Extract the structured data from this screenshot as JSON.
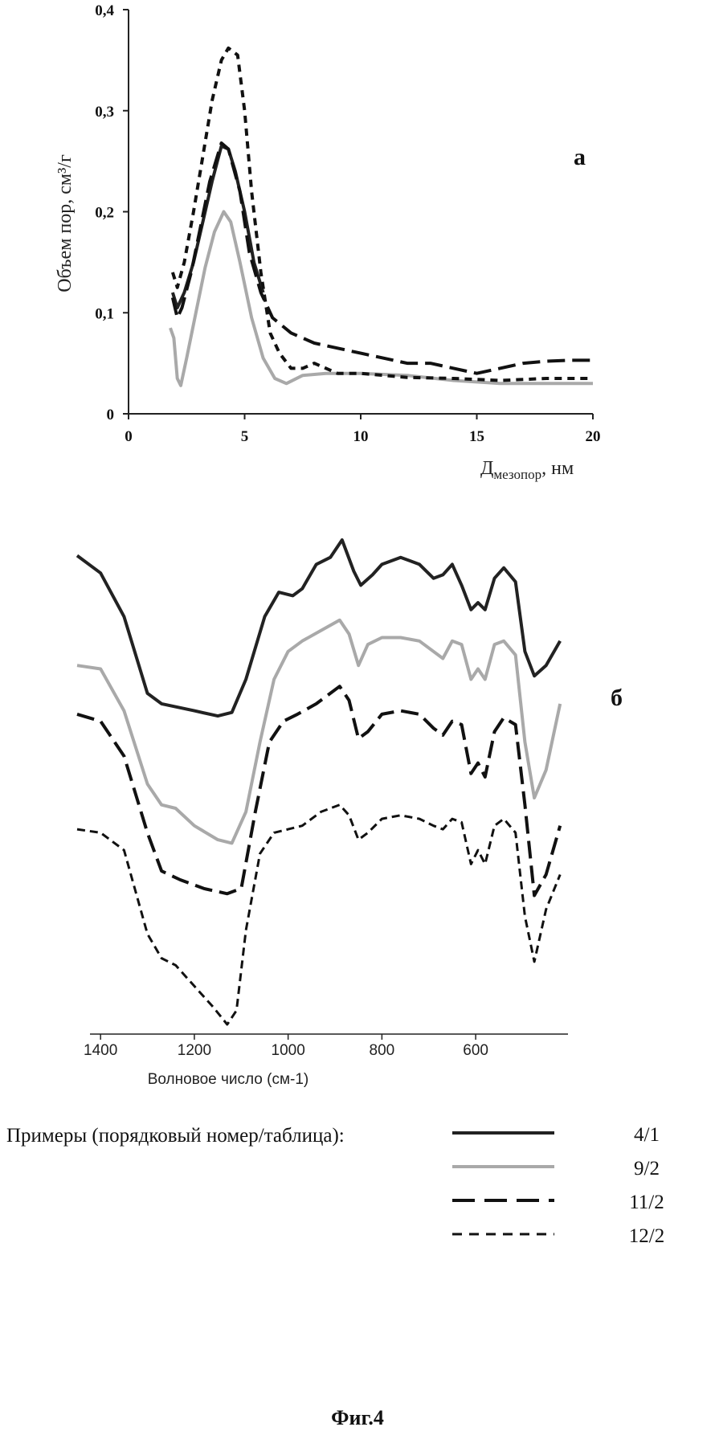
{
  "chart_data": [
    {
      "type": "line",
      "panel_label": "а",
      "ylabel": "Объем пор, см³/г",
      "xlabel_main": "Д",
      "xlabel_sub": "мезопор",
      "xlabel_tail": ", нм",
      "xlim": [
        0,
        20
      ],
      "ylim": [
        0,
        0.4
      ],
      "x_ticks": [
        "0",
        "5",
        "10",
        "15",
        "20"
      ],
      "y_ticks": [
        "0",
        "0,1",
        "0,2",
        "0,3",
        "0,4"
      ],
      "series": [
        {
          "legend": "4/1",
          "style": "solid",
          "color": "#222222",
          "points": [
            [
              1.9,
              0.12
            ],
            [
              2.1,
              0.105
            ],
            [
              2.4,
              0.12
            ],
            [
              2.8,
              0.15
            ],
            [
              3.2,
              0.19
            ],
            [
              3.6,
              0.23
            ],
            [
              4.0,
              0.265
            ],
            [
              4.3,
              0.262
            ],
            [
              4.6,
              0.24
            ],
            [
              5.0,
              0.2
            ],
            [
              5.4,
              0.15
            ],
            [
              5.8,
              0.12
            ]
          ]
        },
        {
          "legend": "9/2",
          "style": "solid",
          "color": "#a9a9a9",
          "points": [
            [
              1.8,
              0.085
            ],
            [
              1.95,
              0.075
            ],
            [
              2.1,
              0.035
            ],
            [
              2.25,
              0.028
            ],
            [
              2.5,
              0.055
            ],
            [
              2.9,
              0.1
            ],
            [
              3.3,
              0.145
            ],
            [
              3.7,
              0.18
            ],
            [
              4.1,
              0.2
            ],
            [
              4.4,
              0.19
            ],
            [
              4.8,
              0.15
            ],
            [
              5.3,
              0.095
            ],
            [
              5.8,
              0.055
            ],
            [
              6.3,
              0.035
            ],
            [
              6.8,
              0.03
            ],
            [
              7.5,
              0.038
            ],
            [
              8.5,
              0.04
            ],
            [
              10,
              0.04
            ],
            [
              12,
              0.038
            ],
            [
              14,
              0.033
            ],
            [
              16,
              0.03
            ],
            [
              18,
              0.03
            ],
            [
              20,
              0.03
            ]
          ]
        },
        {
          "legend": "11/2",
          "style": "dash-long",
          "color": "#111111",
          "points": [
            [
              1.9,
              0.115
            ],
            [
              2.1,
              0.095
            ],
            [
              2.3,
              0.105
            ],
            [
              2.7,
              0.14
            ],
            [
              3.1,
              0.185
            ],
            [
              3.5,
              0.23
            ],
            [
              4.0,
              0.268
            ],
            [
              4.3,
              0.262
            ],
            [
              4.8,
              0.22
            ],
            [
              5.2,
              0.16
            ],
            [
              5.7,
              0.12
            ],
            [
              6.2,
              0.095
            ],
            [
              7,
              0.08
            ],
            [
              8,
              0.07
            ],
            [
              9,
              0.065
            ],
            [
              10,
              0.06
            ],
            [
              11,
              0.055
            ],
            [
              12,
              0.05
            ],
            [
              13,
              0.05
            ],
            [
              14,
              0.045
            ],
            [
              15,
              0.04
            ],
            [
              16,
              0.045
            ],
            [
              17,
              0.05
            ],
            [
              18,
              0.052
            ],
            [
              19,
              0.053
            ],
            [
              20,
              0.053
            ]
          ]
        },
        {
          "legend": "12/2",
          "style": "dash-short",
          "color": "#111111",
          "points": [
            [
              1.9,
              0.14
            ],
            [
              2.1,
              0.125
            ],
            [
              2.4,
              0.15
            ],
            [
              2.8,
              0.2
            ],
            [
              3.2,
              0.255
            ],
            [
              3.6,
              0.31
            ],
            [
              4.0,
              0.35
            ],
            [
              4.3,
              0.362
            ],
            [
              4.7,
              0.355
            ],
            [
              5.0,
              0.3
            ],
            [
              5.3,
              0.22
            ],
            [
              5.7,
              0.14
            ],
            [
              6.1,
              0.08
            ],
            [
              6.5,
              0.06
            ],
            [
              7,
              0.045
            ],
            [
              7.5,
              0.045
            ],
            [
              8,
              0.05
            ],
            [
              9,
              0.04
            ],
            [
              10,
              0.04
            ],
            [
              11,
              0.038
            ],
            [
              12,
              0.036
            ],
            [
              14,
              0.035
            ],
            [
              16,
              0.033
            ],
            [
              18,
              0.035
            ],
            [
              20,
              0.035
            ]
          ]
        }
      ]
    },
    {
      "type": "line",
      "panel_label": "б",
      "xlabel": "Волновое число (см-1)",
      "xlim": [
        1450,
        410
      ],
      "x_reversed": true,
      "x_ticks": [
        "1400",
        "1200",
        "1000",
        "800",
        "600"
      ],
      "y_axis_shown": false,
      "y_units": "relative transmittance (offset stack, 0 = lowest curve minimum, 100 = highest curve maximum)",
      "series": [
        {
          "legend": "4/1",
          "style": "solid",
          "color": "#222222",
          "points": [
            [
              1450,
              93.5
            ],
            [
              1400,
              88.5
            ],
            [
              1350,
              76
            ],
            [
              1300,
              54
            ],
            [
              1270,
              51
            ],
            [
              1200,
              49
            ],
            [
              1150,
              47.5
            ],
            [
              1120,
              48.5
            ],
            [
              1090,
              58
            ],
            [
              1050,
              76
            ],
            [
              1020,
              83
            ],
            [
              990,
              82
            ],
            [
              970,
              84
            ],
            [
              940,
              91
            ],
            [
              910,
              93
            ],
            [
              885,
              98
            ],
            [
              860,
              89
            ],
            [
              845,
              85
            ],
            [
              820,
              88
            ],
            [
              800,
              91
            ],
            [
              760,
              93
            ],
            [
              720,
              91
            ],
            [
              690,
              87
            ],
            [
              670,
              88
            ],
            [
              650,
              91
            ],
            [
              630,
              85
            ],
            [
              610,
              78
            ],
            [
              595,
              80
            ],
            [
              580,
              78
            ],
            [
              560,
              87
            ],
            [
              540,
              90
            ],
            [
              515,
              86
            ],
            [
              495,
              66
            ],
            [
              475,
              59
            ],
            [
              450,
              62
            ],
            [
              420,
              69
            ]
          ]
        },
        {
          "legend": "9/2",
          "style": "solid",
          "color": "#a9a9a9",
          "points": [
            [
              1450,
              62
            ],
            [
              1400,
              61
            ],
            [
              1350,
              49
            ],
            [
              1300,
              28
            ],
            [
              1270,
              22
            ],
            [
              1240,
              21
            ],
            [
              1200,
              16
            ],
            [
              1150,
              12
            ],
            [
              1120,
              11
            ],
            [
              1090,
              20
            ],
            [
              1060,
              40
            ],
            [
              1030,
              58
            ],
            [
              1000,
              66
            ],
            [
              970,
              69
            ],
            [
              930,
              72
            ],
            [
              890,
              75
            ],
            [
              870,
              71
            ],
            [
              850,
              62
            ],
            [
              830,
              68
            ],
            [
              800,
              70
            ],
            [
              760,
              70
            ],
            [
              720,
              69
            ],
            [
              690,
              66
            ],
            [
              670,
              64
            ],
            [
              650,
              69
            ],
            [
              630,
              68
            ],
            [
              610,
              58
            ],
            [
              595,
              61
            ],
            [
              580,
              58
            ],
            [
              560,
              68
            ],
            [
              540,
              69
            ],
            [
              515,
              65
            ],
            [
              495,
              40
            ],
            [
              475,
              24
            ],
            [
              450,
              32
            ],
            [
              420,
              51
            ]
          ]
        },
        {
          "legend": "11/2",
          "style": "dash-long",
          "color": "#111111",
          "points": [
            [
              1450,
              48
            ],
            [
              1400,
              46
            ],
            [
              1350,
              36
            ],
            [
              1300,
              14
            ],
            [
              1270,
              3
            ],
            [
              1230,
              0.5
            ],
            [
              1180,
              -2
            ],
            [
              1130,
              -3.5
            ],
            [
              1100,
              -2
            ],
            [
              1070,
              20
            ],
            [
              1040,
              40
            ],
            [
              1010,
              46
            ],
            [
              980,
              48
            ],
            [
              940,
              51
            ],
            [
              890,
              56
            ],
            [
              870,
              52
            ],
            [
              850,
              41
            ],
            [
              830,
              43
            ],
            [
              800,
              48
            ],
            [
              760,
              49
            ],
            [
              720,
              48
            ],
            [
              690,
              44
            ],
            [
              670,
              42
            ],
            [
              650,
              46
            ],
            [
              630,
              45
            ],
            [
              610,
              31
            ],
            [
              595,
              34
            ],
            [
              580,
              30
            ],
            [
              560,
              43
            ],
            [
              540,
              47
            ],
            [
              515,
              45
            ],
            [
              495,
              22
            ],
            [
              475,
              -4
            ],
            [
              450,
              2
            ],
            [
              420,
              16
            ]
          ]
        },
        {
          "legend": "12/2",
          "style": "dash-short",
          "color": "#111111",
          "points": [
            [
              1450,
              15
            ],
            [
              1400,
              14
            ],
            [
              1350,
              9
            ],
            [
              1300,
              -15
            ],
            [
              1270,
              -22
            ],
            [
              1240,
              -24
            ],
            [
              1200,
              -30
            ],
            [
              1160,
              -36
            ],
            [
              1130,
              -41
            ],
            [
              1110,
              -37
            ],
            [
              1090,
              -14
            ],
            [
              1060,
              8
            ],
            [
              1030,
              14
            ],
            [
              1000,
              15
            ],
            [
              970,
              16
            ],
            [
              930,
              20
            ],
            [
              890,
              22
            ],
            [
              870,
              19
            ],
            [
              850,
              12
            ],
            [
              830,
              14
            ],
            [
              800,
              18
            ],
            [
              760,
              19
            ],
            [
              720,
              18
            ],
            [
              690,
              16
            ],
            [
              670,
              15
            ],
            [
              650,
              18
            ],
            [
              630,
              17
            ],
            [
              610,
              5
            ],
            [
              595,
              9
            ],
            [
              580,
              5
            ],
            [
              560,
              16
            ],
            [
              540,
              18
            ],
            [
              515,
              14
            ],
            [
              495,
              -10
            ],
            [
              475,
              -23
            ],
            [
              450,
              -8
            ],
            [
              420,
              2
            ]
          ]
        }
      ]
    }
  ],
  "legend": {
    "title": "Примеры (порядковый номер/таблица):",
    "items": [
      "4/1",
      "9/2",
      "11/2",
      "12/2"
    ]
  },
  "caption": "Фиг.4"
}
